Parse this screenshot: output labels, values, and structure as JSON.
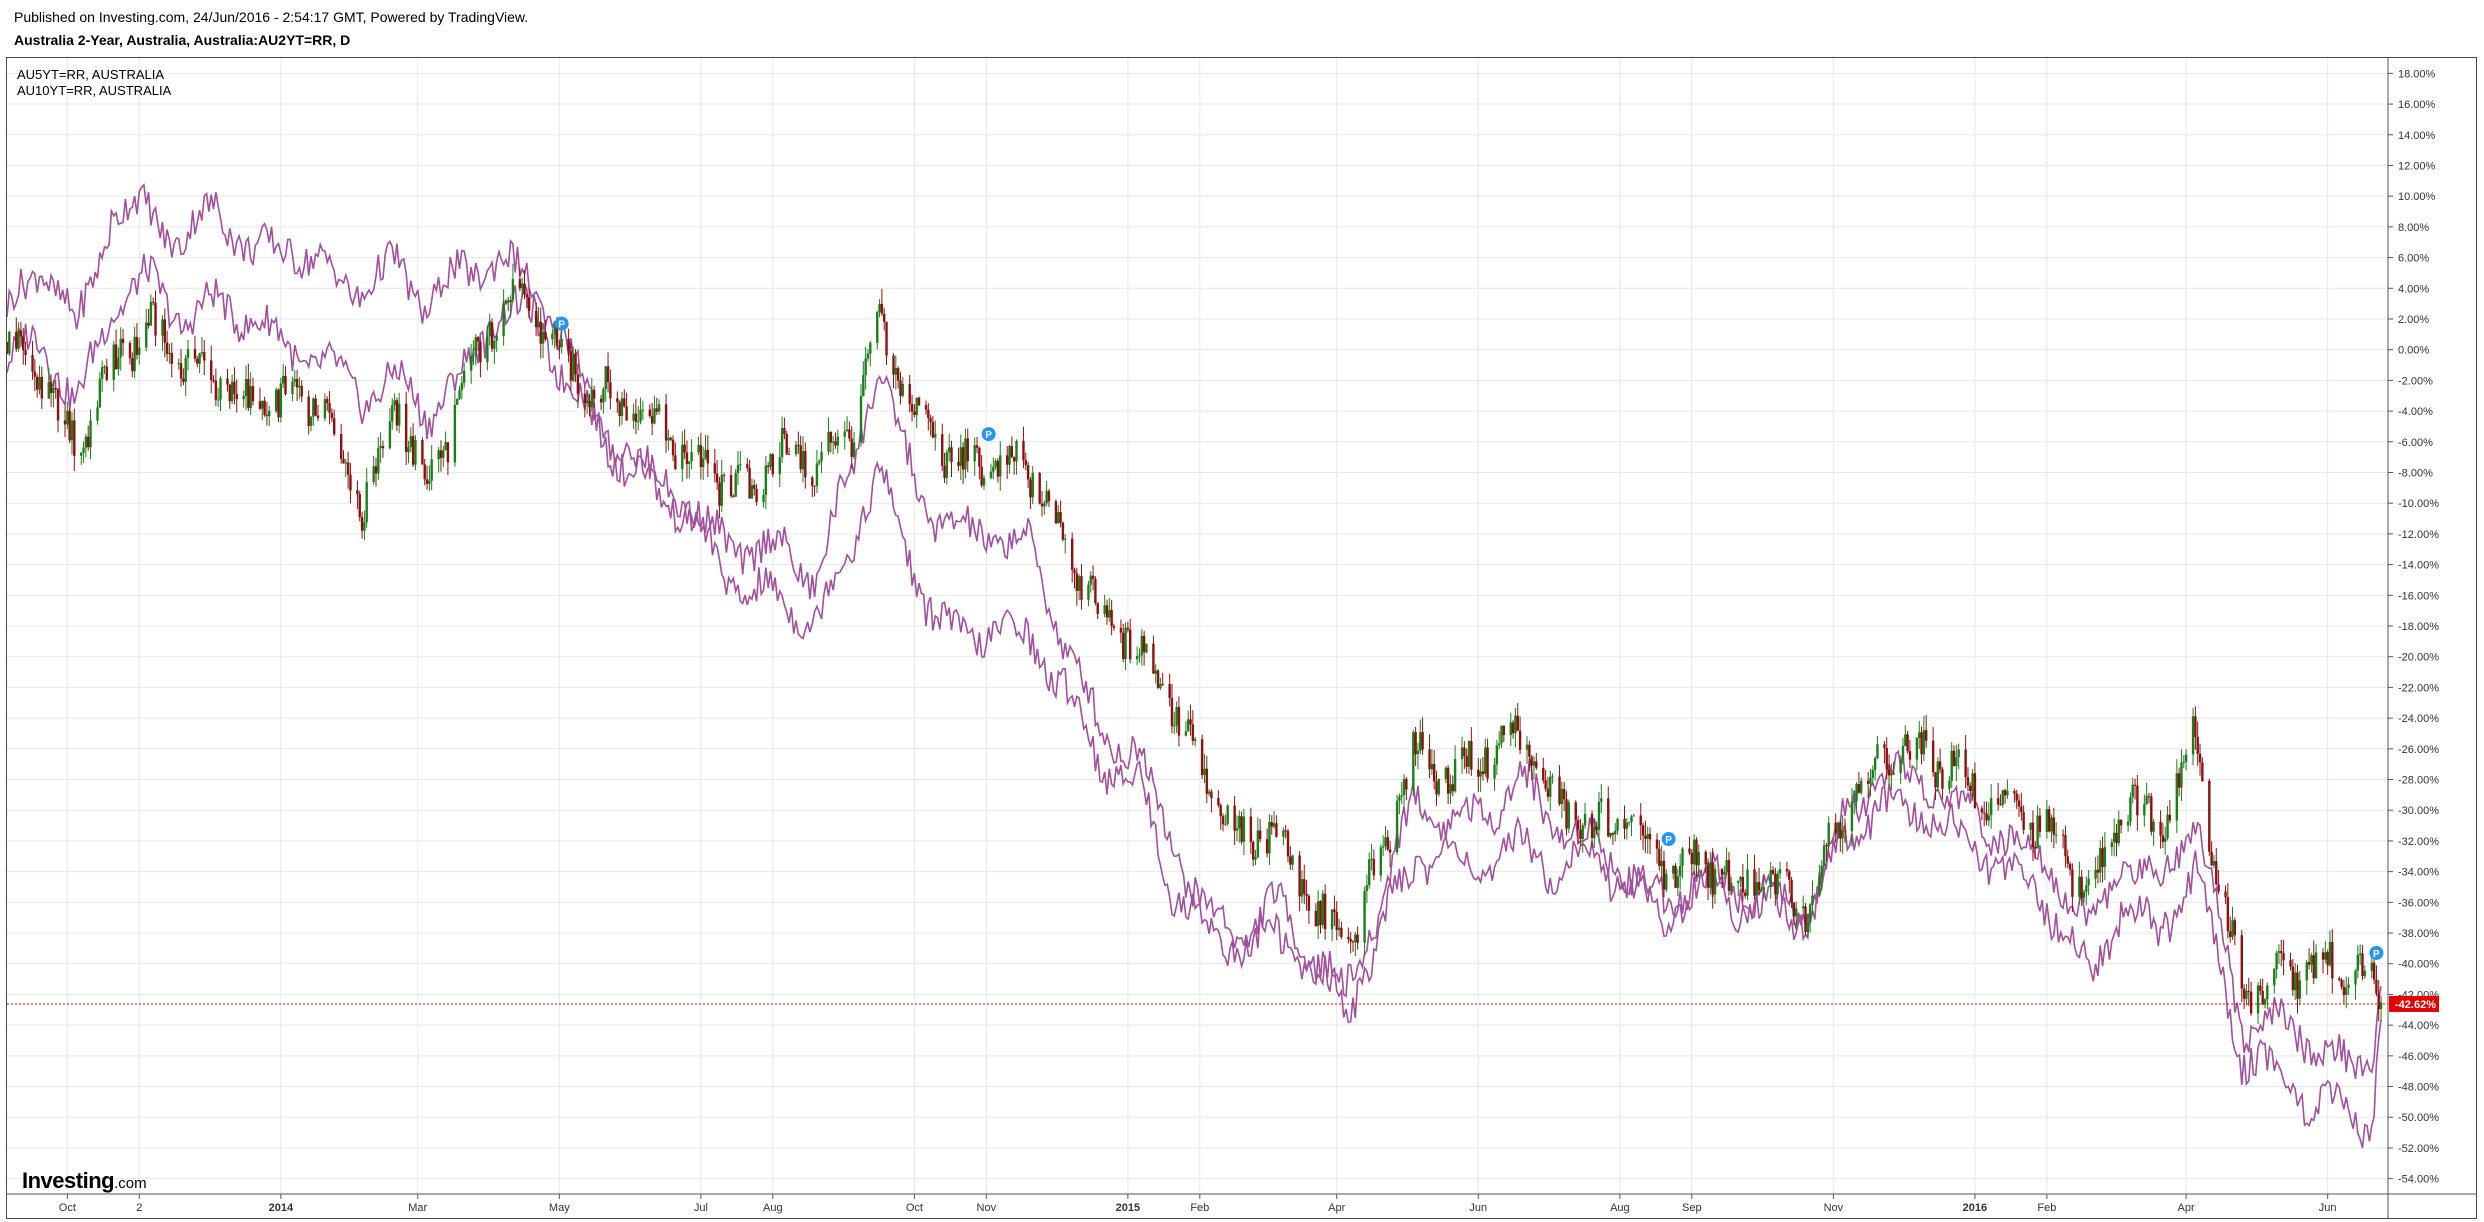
{
  "header": {
    "published": "Published on Investing.com, 24/Jun/2016 - 2:54:17 GMT, Powered by TradingView.",
    "title": "Australia 2-Year, Australia, Australia:AU2YT=RR, D"
  },
  "logo": {
    "word": "Investing",
    "suffix": ".com"
  },
  "colors": {
    "background": "#ffffff",
    "grid": "#e8e8e8",
    "up_candle": "#1a7f1a",
    "down_candle": "#8b1010",
    "compare_lines": "#a0509c",
    "current_value_line": "#e00000",
    "current_value_badge": "#e00000",
    "marker": "#2196f3"
  },
  "markers": {
    "label": "P",
    "icon": "dividend-flag-icon"
  },
  "chart_data": {
    "type": "line",
    "subtype": "candlestick-with-comparison-lines",
    "title": "Australia 2-Year, Australia, Australia:AU2YT=RR, D",
    "y_unit": "%",
    "ylim": [
      -55,
      19
    ],
    "y_ticks": [
      "18.00%",
      "16.00%",
      "14.00%",
      "12.00%",
      "10.00%",
      "8.00%",
      "6.00%",
      "4.00%",
      "2.00%",
      "0.00%",
      "-2.00%",
      "-4.00%",
      "-6.00%",
      "-8.00%",
      "-10.00%",
      "-12.00%",
      "-14.00%",
      "-16.00%",
      "-18.00%",
      "-20.00%",
      "-22.00%",
      "-24.00%",
      "-26.00%",
      "-28.00%",
      "-30.00%",
      "-32.00%",
      "-34.00%",
      "-36.00%",
      "-38.00%",
      "-40.00%",
      "-42.00%",
      "-44.00%",
      "-46.00%",
      "-48.00%",
      "-50.00%",
      "-52.00%",
      "-54.00%"
    ],
    "x_range": [
      "2013-09-05",
      "2016-06-27"
    ],
    "x_ticks": [
      {
        "label": "Oct",
        "date": "2013-10-01"
      },
      {
        "label": "2",
        "date": "2013-11-01"
      },
      {
        "label": "2014",
        "date": "2014-01-01",
        "bold": true
      },
      {
        "label": "Mar",
        "date": "2014-03-01"
      },
      {
        "label": "May",
        "date": "2014-05-01"
      },
      {
        "label": "Jul",
        "date": "2014-07-01"
      },
      {
        "label": "Aug",
        "date": "2014-08-01"
      },
      {
        "label": "Oct",
        "date": "2014-10-01"
      },
      {
        "label": "Nov",
        "date": "2014-11-01"
      },
      {
        "label": "2015",
        "date": "2015-01-01",
        "bold": true
      },
      {
        "label": "Feb",
        "date": "2015-02-01"
      },
      {
        "label": "Apr",
        "date": "2015-04-01"
      },
      {
        "label": "Jun",
        "date": "2015-06-01"
      },
      {
        "label": "Aug",
        "date": "2015-08-01"
      },
      {
        "label": "Sep",
        "date": "2015-09-01"
      },
      {
        "label": "Nov",
        "date": "2015-11-01"
      },
      {
        "label": "2016",
        "date": "2016-01-01",
        "bold": true
      },
      {
        "label": "Feb",
        "date": "2016-02-01"
      },
      {
        "label": "Apr",
        "date": "2016-04-01"
      },
      {
        "label": "Jun",
        "date": "2016-06-01"
      }
    ],
    "grid": true,
    "legend_position": "top-left",
    "current_value": {
      "value": -42.62,
      "label": "-42.62%"
    },
    "series": [
      {
        "name": "AU2YT=RR",
        "kind": "candlestick",
        "points": [
          [
            "2013-09-05",
            0.5
          ],
          [
            "2013-09-20",
            -2.0
          ],
          [
            "2013-10-05",
            -6.5
          ],
          [
            "2013-10-20",
            -1.0
          ],
          [
            "2013-11-05",
            1.5
          ],
          [
            "2013-11-20",
            -1.0
          ],
          [
            "2013-12-05",
            -2.0
          ],
          [
            "2013-12-20",
            -4.0
          ],
          [
            "2014-01-05",
            -3.0
          ],
          [
            "2014-01-20",
            -3.5
          ],
          [
            "2014-02-05",
            -10.5
          ],
          [
            "2014-02-20",
            -3.5
          ],
          [
            "2014-03-05",
            -9.0
          ],
          [
            "2014-03-20",
            -3.0
          ],
          [
            "2014-04-05",
            3.0
          ],
          [
            "2014-04-20",
            2.5
          ],
          [
            "2014-05-05",
            -1.0
          ],
          [
            "2014-05-20",
            -3.0
          ],
          [
            "2014-06-05",
            -3.5
          ],
          [
            "2014-06-20",
            -6.5
          ],
          [
            "2014-07-05",
            -8.0
          ],
          [
            "2014-07-20",
            -9.5
          ],
          [
            "2014-08-05",
            -6.5
          ],
          [
            "2014-08-20",
            -7.5
          ],
          [
            "2014-09-05",
            -5.0
          ],
          [
            "2014-09-15",
            2.0
          ],
          [
            "2014-09-25",
            -2.0
          ],
          [
            "2014-10-05",
            -5.0
          ],
          [
            "2014-10-20",
            -7.5
          ],
          [
            "2014-11-05",
            -7.5
          ],
          [
            "2014-11-20",
            -8.0
          ],
          [
            "2014-12-05",
            -12.5
          ],
          [
            "2014-12-20",
            -17.0
          ],
          [
            "2015-01-05",
            -19.0
          ],
          [
            "2015-01-20",
            -23.0
          ],
          [
            "2015-02-05",
            -29.0
          ],
          [
            "2015-02-20",
            -32.0
          ],
          [
            "2015-03-05",
            -31.0
          ],
          [
            "2015-03-20",
            -36.0
          ],
          [
            "2015-04-05",
            -39.0
          ],
          [
            "2015-04-20",
            -33.0
          ],
          [
            "2015-05-05",
            -26.0
          ],
          [
            "2015-05-20",
            -28.0
          ],
          [
            "2015-06-05",
            -26.0
          ],
          [
            "2015-06-20",
            -25.0
          ],
          [
            "2015-07-05",
            -30.0
          ],
          [
            "2015-07-20",
            -31.0
          ],
          [
            "2015-08-05",
            -31.0
          ],
          [
            "2015-08-20",
            -34.0
          ],
          [
            "2015-09-05",
            -33.0
          ],
          [
            "2015-09-20",
            -35.0
          ],
          [
            "2015-10-05",
            -35.0
          ],
          [
            "2015-10-20",
            -36.0
          ],
          [
            "2015-11-05",
            -30.0
          ],
          [
            "2015-11-20",
            -27.0
          ],
          [
            "2015-12-05",
            -26.0
          ],
          [
            "2015-12-20",
            -27.0
          ],
          [
            "2016-01-05",
            -29.0
          ],
          [
            "2016-01-20",
            -30.0
          ],
          [
            "2016-02-05",
            -32.0
          ],
          [
            "2016-02-20",
            -36.0
          ],
          [
            "2016-03-05",
            -29.0
          ],
          [
            "2016-03-20",
            -31.0
          ],
          [
            "2016-04-05",
            -25.0
          ],
          [
            "2016-04-12",
            -32.0
          ],
          [
            "2016-04-25",
            -42.0
          ],
          [
            "2016-05-10",
            -41.0
          ],
          [
            "2016-05-25",
            -40.0
          ],
          [
            "2016-06-10",
            -40.5
          ],
          [
            "2016-06-20",
            -40.0
          ],
          [
            "2016-06-24",
            -42.6
          ]
        ]
      },
      {
        "name": "AU5YT=RR, AUSTRALIA",
        "kind": "line",
        "points": [
          [
            "2013-09-05",
            -1.0
          ],
          [
            "2013-09-20",
            1.0
          ],
          [
            "2013-10-05",
            -4.0
          ],
          [
            "2013-10-20",
            3.0
          ],
          [
            "2013-11-05",
            4.5
          ],
          [
            "2013-11-20",
            2.0
          ],
          [
            "2013-12-05",
            3.0
          ],
          [
            "2013-12-20",
            2.0
          ],
          [
            "2014-01-05",
            0.0
          ],
          [
            "2014-01-20",
            -1.0
          ],
          [
            "2014-02-05",
            -3.0
          ],
          [
            "2014-02-20",
            -2.0
          ],
          [
            "2014-03-05",
            -4.0
          ],
          [
            "2014-03-20",
            -2.0
          ],
          [
            "2014-04-05",
            3.0
          ],
          [
            "2014-04-20",
            2.0
          ],
          [
            "2014-05-05",
            -2.0
          ],
          [
            "2014-05-20",
            -6.0
          ],
          [
            "2014-06-05",
            -8.0
          ],
          [
            "2014-06-20",
            -9.0
          ],
          [
            "2014-07-05",
            -12.0
          ],
          [
            "2014-07-20",
            -13.0
          ],
          [
            "2014-08-05",
            -13.0
          ],
          [
            "2014-08-20",
            -15.0
          ],
          [
            "2014-09-05",
            -7.0
          ],
          [
            "2014-09-15",
            -1.0
          ],
          [
            "2014-09-25",
            -6.0
          ],
          [
            "2014-10-05",
            -10.0
          ],
          [
            "2014-10-20",
            -12.0
          ],
          [
            "2014-11-05",
            -12.0
          ],
          [
            "2014-11-20",
            -13.0
          ],
          [
            "2014-12-05",
            -19.0
          ],
          [
            "2014-12-20",
            -25.0
          ],
          [
            "2015-01-05",
            -26.0
          ],
          [
            "2015-01-20",
            -32.0
          ],
          [
            "2015-02-05",
            -37.0
          ],
          [
            "2015-02-20",
            -38.0
          ],
          [
            "2015-03-05",
            -36.0
          ],
          [
            "2015-03-20",
            -39.0
          ],
          [
            "2015-04-05",
            -42.0
          ],
          [
            "2015-04-20",
            -36.0
          ],
          [
            "2015-05-05",
            -29.0
          ],
          [
            "2015-05-20",
            -31.0
          ],
          [
            "2015-06-05",
            -30.0
          ],
          [
            "2015-06-20",
            -28.0
          ],
          [
            "2015-07-05",
            -31.0
          ],
          [
            "2015-07-20",
            -32.0
          ],
          [
            "2015-08-05",
            -34.0
          ],
          [
            "2015-08-20",
            -36.0
          ],
          [
            "2015-09-05",
            -34.0
          ],
          [
            "2015-09-20",
            -35.0
          ],
          [
            "2015-10-05",
            -36.0
          ],
          [
            "2015-10-20",
            -37.0
          ],
          [
            "2015-11-05",
            -31.0
          ],
          [
            "2015-11-20",
            -28.0
          ],
          [
            "2015-12-05",
            -28.0
          ],
          [
            "2015-12-20",
            -29.0
          ],
          [
            "2016-01-05",
            -31.0
          ],
          [
            "2016-01-20",
            -32.0
          ],
          [
            "2016-02-05",
            -34.0
          ],
          [
            "2016-02-20",
            -38.0
          ],
          [
            "2016-03-05",
            -33.0
          ],
          [
            "2016-03-20",
            -35.0
          ],
          [
            "2016-04-05",
            -30.0
          ],
          [
            "2016-04-12",
            -35.0
          ],
          [
            "2016-04-25",
            -44.0
          ],
          [
            "2016-05-10",
            -44.0
          ],
          [
            "2016-05-25",
            -45.0
          ],
          [
            "2016-06-10",
            -47.0
          ],
          [
            "2016-06-20",
            -46.0
          ],
          [
            "2016-06-24",
            -41.0
          ]
        ]
      },
      {
        "name": "AU10YT=RR, AUSTRALIA",
        "kind": "line",
        "points": [
          [
            "2013-09-05",
            2.0
          ],
          [
            "2013-09-20",
            6.0
          ],
          [
            "2013-10-05",
            1.0
          ],
          [
            "2013-10-20",
            9.0
          ],
          [
            "2013-11-05",
            9.0
          ],
          [
            "2013-11-20",
            7.0
          ],
          [
            "2013-12-05",
            9.5
          ],
          [
            "2013-12-20",
            6.0
          ],
          [
            "2014-01-05",
            7.0
          ],
          [
            "2014-01-20",
            5.0
          ],
          [
            "2014-02-05",
            4.0
          ],
          [
            "2014-02-20",
            5.5
          ],
          [
            "2014-03-05",
            3.0
          ],
          [
            "2014-03-20",
            5.0
          ],
          [
            "2014-04-05",
            6.0
          ],
          [
            "2014-04-20",
            4.0
          ],
          [
            "2014-05-05",
            0.0
          ],
          [
            "2014-05-20",
            -5.0
          ],
          [
            "2014-06-05",
            -8.0
          ],
          [
            "2014-06-20",
            -10.0
          ],
          [
            "2014-07-05",
            -13.0
          ],
          [
            "2014-07-20",
            -16.0
          ],
          [
            "2014-08-05",
            -16.0
          ],
          [
            "2014-08-20",
            -18.0
          ],
          [
            "2014-09-05",
            -12.0
          ],
          [
            "2014-09-15",
            -8.0
          ],
          [
            "2014-09-25",
            -12.0
          ],
          [
            "2014-10-05",
            -16.0
          ],
          [
            "2014-10-20",
            -19.0
          ],
          [
            "2014-11-05",
            -18.0
          ],
          [
            "2014-11-20",
            -19.0
          ],
          [
            "2014-12-05",
            -22.0
          ],
          [
            "2014-12-20",
            -27.0
          ],
          [
            "2015-01-05",
            -28.0
          ],
          [
            "2015-01-20",
            -35.0
          ],
          [
            "2015-02-05",
            -38.0
          ],
          [
            "2015-02-20",
            -39.0
          ],
          [
            "2015-03-05",
            -38.0
          ],
          [
            "2015-03-20",
            -40.0
          ],
          [
            "2015-04-05",
            -43.0
          ],
          [
            "2015-04-20",
            -38.0
          ],
          [
            "2015-05-05",
            -33.0
          ],
          [
            "2015-05-20",
            -33.0
          ],
          [
            "2015-06-05",
            -34.0
          ],
          [
            "2015-06-20",
            -32.0
          ],
          [
            "2015-07-05",
            -34.0
          ],
          [
            "2015-07-20",
            -33.0
          ],
          [
            "2015-08-05",
            -35.0
          ],
          [
            "2015-08-20",
            -37.0
          ],
          [
            "2015-09-05",
            -35.0
          ],
          [
            "2015-09-20",
            -36.0
          ],
          [
            "2015-10-05",
            -36.0
          ],
          [
            "2015-10-20",
            -37.0
          ],
          [
            "2015-11-05",
            -32.0
          ],
          [
            "2015-11-20",
            -30.0
          ],
          [
            "2015-12-05",
            -30.0
          ],
          [
            "2015-12-20",
            -31.0
          ],
          [
            "2016-01-05",
            -33.0
          ],
          [
            "2016-01-20",
            -34.0
          ],
          [
            "2016-02-05",
            -37.0
          ],
          [
            "2016-02-20",
            -41.0
          ],
          [
            "2016-03-05",
            -36.0
          ],
          [
            "2016-03-20",
            -38.0
          ],
          [
            "2016-04-05",
            -34.0
          ],
          [
            "2016-04-12",
            -38.0
          ],
          [
            "2016-04-25",
            -46.0
          ],
          [
            "2016-05-10",
            -47.0
          ],
          [
            "2016-05-25",
            -49.0
          ],
          [
            "2016-06-10",
            -50.0
          ],
          [
            "2016-06-20",
            -50.5
          ],
          [
            "2016-06-24",
            -44.0
          ]
        ]
      }
    ],
    "event_markers": [
      "2014-05-02",
      "2014-11-02",
      "2015-08-22",
      "2016-06-22"
    ]
  }
}
